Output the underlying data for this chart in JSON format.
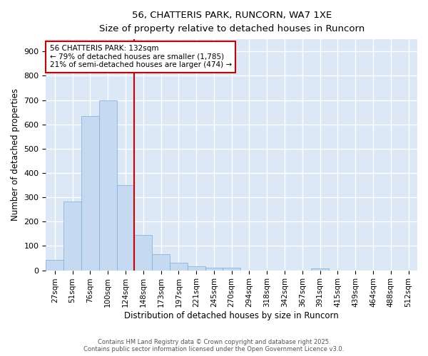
{
  "title_line1": "56, CHATTERIS PARK, RUNCORN, WA7 1XE",
  "title_line2": "Size of property relative to detached houses in Runcorn",
  "xlabel": "Distribution of detached houses by size in Runcorn",
  "ylabel": "Number of detached properties",
  "bar_labels": [
    "27sqm",
    "51sqm",
    "76sqm",
    "100sqm",
    "124sqm",
    "148sqm",
    "173sqm",
    "197sqm",
    "221sqm",
    "245sqm",
    "270sqm",
    "294sqm",
    "318sqm",
    "342sqm",
    "367sqm",
    "391sqm",
    "415sqm",
    "439sqm",
    "464sqm",
    "488sqm",
    "512sqm"
  ],
  "bar_values": [
    43,
    283,
    633,
    700,
    350,
    145,
    65,
    30,
    15,
    10,
    10,
    0,
    0,
    0,
    0,
    8,
    0,
    0,
    0,
    0,
    0
  ],
  "bar_color": "#c5d9f0",
  "bar_edgecolor": "#7aafd4",
  "vline_x": 4,
  "vline_color": "#cc0000",
  "annotation_text": "56 CHATTERIS PARK: 132sqm\n← 79% of detached houses are smaller (1,785)\n21% of semi-detached houses are larger (474) →",
  "annotation_box_color": "#ffffff",
  "annotation_box_edgecolor": "#cc0000",
  "ylim": [
    0,
    950
  ],
  "yticks": [
    0,
    100,
    200,
    300,
    400,
    500,
    600,
    700,
    800,
    900
  ],
  "plot_bg_color": "#dce8f5",
  "fig_bg_color": "#ffffff",
  "grid_color": "#ffffff",
  "footer_line1": "Contains HM Land Registry data © Crown copyright and database right 2025.",
  "footer_line2": "Contains public sector information licensed under the Open Government Licence v3.0."
}
